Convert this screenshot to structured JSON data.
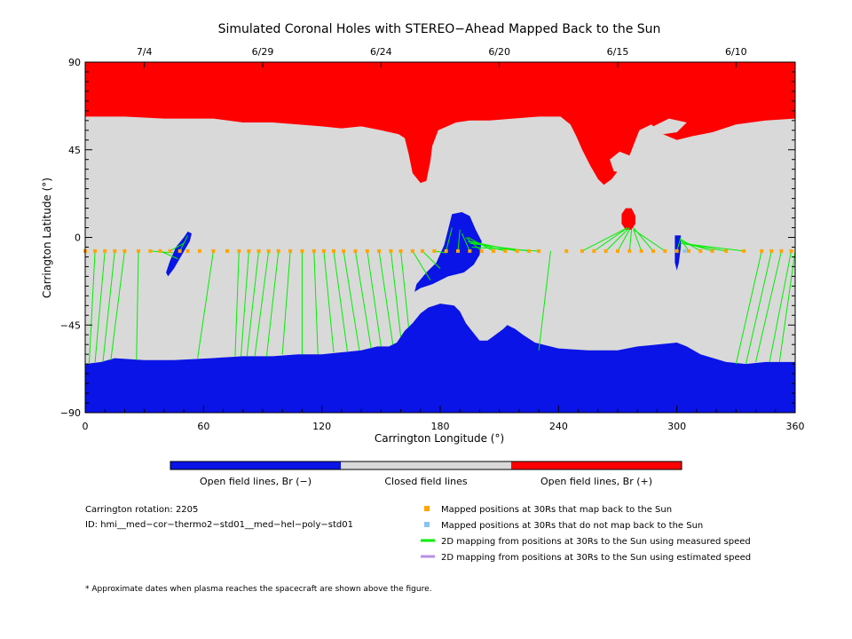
{
  "chart_data": {
    "type": "scatter",
    "title": "Simulated Coronal Holes with STEREO−Ahead Mapped Back to the Sun",
    "xlabel": "Carrington Longitude (°)",
    "ylabel": "Carrington Latitude (°)",
    "xlim": [
      0,
      360
    ],
    "ylim": [
      -90,
      90
    ],
    "x_ticks": [
      0,
      60,
      120,
      180,
      240,
      300,
      360
    ],
    "y_ticks": [
      -90,
      -45,
      0,
      45,
      90
    ],
    "top_axis_dates": [
      {
        "label": "7/4",
        "lon": 30
      },
      {
        "label": "6/29",
        "lon": 90
      },
      {
        "label": "6/24",
        "lon": 150
      },
      {
        "label": "6/20",
        "lon": 210
      },
      {
        "label": "6/15",
        "lon": 270
      },
      {
        "label": "6/10",
        "lon": 330
      }
    ],
    "colors": {
      "open_negative": "#0a14e6",
      "closed": "#d9d9d9",
      "open_positive": "#ff0000",
      "mapped": "#ffa500",
      "unmapped": "#87c5f0",
      "measured": "#00ee00",
      "estimated": "#b98fe8"
    },
    "regions": {
      "positive_polar": [
        [
          0,
          90
        ],
        [
          360,
          90
        ],
        [
          360,
          61
        ],
        [
          345,
          60
        ],
        [
          330,
          58
        ],
        [
          318,
          54
        ],
        [
          308,
          52
        ],
        [
          300,
          50
        ],
        [
          293,
          53
        ],
        [
          287,
          58
        ],
        [
          281,
          55
        ],
        [
          276,
          42
        ],
        [
          272,
          38
        ],
        [
          270,
          34
        ],
        [
          267,
          30
        ],
        [
          263,
          27
        ],
        [
          260,
          30
        ],
        [
          256,
          37
        ],
        [
          252,
          45
        ],
        [
          249,
          52
        ],
        [
          246,
          58
        ],
        [
          241,
          62
        ],
        [
          230,
          62
        ],
        [
          217,
          61
        ],
        [
          205,
          60
        ],
        [
          195,
          60
        ],
        [
          188,
          59
        ],
        [
          179,
          55
        ],
        [
          176,
          47
        ],
        [
          175,
          39
        ],
        [
          173,
          29
        ],
        [
          170,
          28
        ],
        [
          166,
          33
        ],
        [
          164,
          43
        ],
        [
          162,
          51
        ],
        [
          159,
          53
        ],
        [
          150,
          55
        ],
        [
          140,
          57
        ],
        [
          130,
          56
        ],
        [
          120,
          57
        ],
        [
          108,
          58
        ],
        [
          95,
          59
        ],
        [
          80,
          59
        ],
        [
          65,
          61
        ],
        [
          40,
          61
        ],
        [
          20,
          62
        ],
        [
          0,
          62
        ]
      ],
      "positive_spot": [
        [
          277,
          15
        ],
        [
          279,
          11
        ],
        [
          279,
          7
        ],
        [
          277,
          4
        ],
        [
          274,
          4
        ],
        [
          272,
          7
        ],
        [
          272,
          12
        ],
        [
          274,
          15
        ]
      ],
      "closed_islands_in_positive": [
        [
          [
            266,
            40
          ],
          [
            271,
            44
          ],
          [
            276,
            42
          ],
          [
            277,
            37
          ],
          [
            273,
            33
          ],
          [
            268,
            34
          ]
        ],
        [
          [
            288,
            57
          ],
          [
            296,
            61
          ],
          [
            305,
            59
          ],
          [
            300,
            54
          ],
          [
            293,
            53
          ]
        ]
      ],
      "negative_polar": [
        [
          0,
          -90
        ],
        [
          360,
          -90
        ],
        [
          360,
          -64
        ],
        [
          345,
          -64
        ],
        [
          335,
          -65
        ],
        [
          325,
          -64
        ],
        [
          312,
          -60
        ],
        [
          305,
          -56
        ],
        [
          300,
          -54
        ],
        [
          290,
          -55
        ],
        [
          280,
          -56
        ],
        [
          270,
          -58
        ],
        [
          255,
          -58
        ],
        [
          240,
          -57
        ],
        [
          228,
          -54
        ],
        [
          222,
          -50
        ],
        [
          218,
          -47
        ],
        [
          214,
          -45
        ],
        [
          212,
          -47
        ],
        [
          208,
          -50
        ],
        [
          204,
          -53
        ],
        [
          200,
          -53
        ],
        [
          196,
          -48
        ],
        [
          193,
          -44
        ],
        [
          190,
          -38
        ],
        [
          187,
          -35
        ],
        [
          180,
          -34
        ],
        [
          174,
          -36
        ],
        [
          170,
          -39
        ],
        [
          166,
          -44
        ],
        [
          162,
          -48
        ],
        [
          158,
          -54
        ],
        [
          154,
          -56
        ],
        [
          148,
          -56
        ],
        [
          140,
          -58
        ],
        [
          130,
          -59
        ],
        [
          120,
          -60
        ],
        [
          108,
          -60
        ],
        [
          95,
          -61
        ],
        [
          80,
          -61
        ],
        [
          64,
          -62
        ],
        [
          45,
          -63
        ],
        [
          30,
          -63
        ],
        [
          15,
          -62
        ],
        [
          8,
          -64
        ],
        [
          0,
          -65
        ]
      ],
      "negative_patches": [
        [
          [
            186,
            12
          ],
          [
            191,
            13
          ],
          [
            195,
            11
          ],
          [
            198,
            4
          ],
          [
            201,
            -2
          ],
          [
            200,
            -9
          ],
          [
            197,
            -14
          ],
          [
            192,
            -18
          ],
          [
            184,
            -20
          ],
          [
            176,
            -24
          ],
          [
            170,
            -26
          ],
          [
            167,
            -28
          ],
          [
            168,
            -24
          ],
          [
            173,
            -18
          ],
          [
            178,
            -13
          ],
          [
            182,
            -4
          ],
          [
            184,
            4
          ]
        ],
        [
          [
            52,
            3
          ],
          [
            54,
            2
          ],
          [
            53,
            -2
          ],
          [
            49,
            -9
          ],
          [
            45,
            -16
          ],
          [
            42,
            -20
          ],
          [
            41,
            -18
          ],
          [
            43,
            -12
          ],
          [
            46,
            -5
          ],
          [
            50,
            0
          ]
        ],
        [
          [
            299,
            1
          ],
          [
            302,
            1
          ],
          [
            302,
            -5
          ],
          [
            301,
            -13
          ],
          [
            300,
            -17
          ],
          [
            299,
            -13
          ],
          [
            299,
            -6
          ]
        ]
      ]
    },
    "mapped_points": [
      [
        0,
        -7
      ],
      [
        5,
        -7
      ],
      [
        10,
        -7
      ],
      [
        15,
        -7
      ],
      [
        20,
        -7
      ],
      [
        27,
        -7
      ],
      [
        33,
        -7
      ],
      [
        38,
        -7
      ],
      [
        43,
        -7
      ],
      [
        48,
        -7
      ],
      [
        52,
        -7
      ],
      [
        58,
        -7
      ],
      [
        65,
        -7
      ],
      [
        72,
        -7
      ],
      [
        78,
        -7
      ],
      [
        83,
        -7
      ],
      [
        88,
        -7
      ],
      [
        93,
        -7
      ],
      [
        98,
        -7
      ],
      [
        104,
        -7
      ],
      [
        110,
        -7
      ],
      [
        116,
        -7
      ],
      [
        121,
        -7
      ],
      [
        126,
        -7
      ],
      [
        131,
        -7
      ],
      [
        137,
        -7
      ],
      [
        143,
        -7
      ],
      [
        149,
        -7
      ],
      [
        155,
        -7
      ],
      [
        160,
        -7
      ],
      [
        166,
        -7
      ],
      [
        171,
        -7
      ],
      [
        177,
        -7
      ],
      [
        183,
        -7
      ],
      [
        189,
        -7
      ],
      [
        195,
        -7
      ],
      [
        201,
        -7
      ],
      [
        207,
        -7
      ],
      [
        213,
        -7
      ],
      [
        219,
        -7
      ],
      [
        225,
        -7
      ],
      [
        230,
        -7
      ],
      [
        244,
        -7
      ],
      [
        252,
        -7
      ],
      [
        258,
        -7
      ],
      [
        264,
        -7
      ],
      [
        270,
        -7
      ],
      [
        276,
        -7
      ],
      [
        282,
        -7
      ],
      [
        288,
        -7
      ],
      [
        294,
        -7
      ],
      [
        300,
        -7
      ],
      [
        306,
        -7
      ],
      [
        312,
        -7
      ],
      [
        318,
        -7
      ],
      [
        325,
        -7
      ],
      [
        334,
        -7
      ],
      [
        343,
        -7
      ],
      [
        348,
        -7
      ],
      [
        353,
        -7
      ],
      [
        358,
        -7
      ]
    ],
    "unmapped_points": [
      [
        304,
        -7
      ]
    ],
    "measured_lines": [
      [
        [
          0,
          -7
        ],
        [
          0,
          -65
        ]
      ],
      [
        [
          5,
          -7
        ],
        [
          2,
          -65
        ]
      ],
      [
        [
          10,
          -7
        ],
        [
          5,
          -64
        ]
      ],
      [
        [
          15,
          -7
        ],
        [
          9,
          -64
        ]
      ],
      [
        [
          20,
          -7
        ],
        [
          13,
          -63
        ]
      ],
      [
        [
          27,
          -7
        ],
        [
          26,
          -63
        ]
      ],
      [
        [
          33,
          -7
        ],
        [
          45,
          -8
        ]
      ],
      [
        [
          38,
          -7
        ],
        [
          47,
          -11
        ]
      ],
      [
        [
          43,
          -7
        ],
        [
          50,
          -3
        ]
      ],
      [
        [
          48,
          -7
        ],
        [
          52,
          1
        ]
      ],
      [
        [
          65,
          -7
        ],
        [
          57,
          -62
        ]
      ],
      [
        [
          78,
          -7
        ],
        [
          76,
          -61
        ]
      ],
      [
        [
          83,
          -7
        ],
        [
          79,
          -61
        ]
      ],
      [
        [
          88,
          -7
        ],
        [
          82,
          -61
        ]
      ],
      [
        [
          93,
          -7
        ],
        [
          86,
          -61
        ]
      ],
      [
        [
          98,
          -7
        ],
        [
          92,
          -61
        ]
      ],
      [
        [
          104,
          -7
        ],
        [
          100,
          -60
        ]
      ],
      [
        [
          110,
          -7
        ],
        [
          110,
          -60
        ]
      ],
      [
        [
          116,
          -7
        ],
        [
          118,
          -60
        ]
      ],
      [
        [
          121,
          -7
        ],
        [
          126,
          -59
        ]
      ],
      [
        [
          126,
          -7
        ],
        [
          133,
          -59
        ]
      ],
      [
        [
          131,
          -7
        ],
        [
          139,
          -58
        ]
      ],
      [
        [
          137,
          -7
        ],
        [
          145,
          -57
        ]
      ],
      [
        [
          143,
          -7
        ],
        [
          150,
          -56
        ]
      ],
      [
        [
          149,
          -7
        ],
        [
          156,
          -55
        ]
      ],
      [
        [
          155,
          -7
        ],
        [
          160,
          -51
        ]
      ],
      [
        [
          160,
          -7
        ],
        [
          164,
          -46
        ]
      ],
      [
        [
          166,
          -7
        ],
        [
          175,
          -22
        ]
      ],
      [
        [
          171,
          -7
        ],
        [
          180,
          -16
        ]
      ],
      [
        [
          177,
          -7
        ],
        [
          183,
          -8
        ]
      ],
      [
        [
          183,
          -7
        ],
        [
          186,
          5
        ]
      ],
      [
        [
          189,
          -7
        ],
        [
          190,
          4
        ]
      ],
      [
        [
          195,
          -7
        ],
        [
          191,
          2
        ]
      ],
      [
        [
          201,
          -7
        ],
        [
          193,
          0
        ]
      ],
      [
        [
          207,
          -7
        ],
        [
          194,
          0
        ]
      ],
      [
        [
          213,
          -7
        ],
        [
          194,
          -2
        ]
      ],
      [
        [
          219,
          -7
        ],
        [
          195,
          -2
        ]
      ],
      [
        [
          225,
          -7
        ],
        [
          195,
          -3
        ]
      ],
      [
        [
          230,
          -7
        ],
        [
          196,
          -5
        ]
      ],
      [
        [
          236,
          -7
        ],
        [
          230,
          -58
        ]
      ],
      [
        [
          252,
          -7
        ],
        [
          275,
          5
        ]
      ],
      [
        [
          258,
          -7
        ],
        [
          275,
          5
        ]
      ],
      [
        [
          264,
          -7
        ],
        [
          276,
          5
        ]
      ],
      [
        [
          270,
          -7
        ],
        [
          276,
          4
        ]
      ],
      [
        [
          276,
          -7
        ],
        [
          277,
          4
        ]
      ],
      [
        [
          282,
          -7
        ],
        [
          278,
          4
        ]
      ],
      [
        [
          288,
          -7
        ],
        [
          278,
          5
        ]
      ],
      [
        [
          294,
          -7
        ],
        [
          278,
          4
        ]
      ],
      [
        [
          300,
          -7
        ],
        [
          302,
          0
        ]
      ],
      [
        [
          306,
          -7
        ],
        [
          302,
          -1
        ]
      ],
      [
        [
          312,
          -7
        ],
        [
          302,
          -1
        ]
      ],
      [
        [
          318,
          -7
        ],
        [
          302,
          -2
        ]
      ],
      [
        [
          325,
          -7
        ],
        [
          302,
          -3
        ]
      ],
      [
        [
          334,
          -7
        ],
        [
          302,
          -3
        ]
      ],
      [
        [
          343,
          -7
        ],
        [
          330,
          -65
        ]
      ],
      [
        [
          348,
          -7
        ],
        [
          335,
          -65
        ]
      ],
      [
        [
          353,
          -7
        ],
        [
          340,
          -64
        ]
      ],
      [
        [
          358,
          -7
        ],
        [
          347,
          -64
        ]
      ],
      [
        [
          360,
          -7
        ],
        [
          352,
          -64
        ]
      ]
    ],
    "colorbar": [
      {
        "label": "Open field lines, Br (−)",
        "color": "#0a14e6"
      },
      {
        "label": "Closed field lines",
        "color": "#d9d9d9"
      },
      {
        "label": "Open field lines, Br (+)",
        "color": "#ff0000"
      }
    ],
    "info": {
      "rotation": "Carrington rotation: 2205",
      "id": "ID: hmi__med−cor−thermo2−std01__med−hel−poly−std01"
    },
    "legend": [
      {
        "label": "Mapped positions at 30Rs that map back to the Sun",
        "kind": "square",
        "color": "#ffa500"
      },
      {
        "label": "Mapped positions at 30Rs that do not map back to the Sun",
        "kind": "square",
        "color": "#87c5f0"
      },
      {
        "label": "2D mapping from positions at 30Rs to the Sun using measured speed",
        "kind": "line",
        "color": "#00ee00"
      },
      {
        "label": "2D mapping from positions at 30Rs to the Sun using estimated speed",
        "kind": "line",
        "color": "#b98fe8"
      }
    ],
    "footnote": "* Approximate dates when plasma reaches the spacecraft are shown above the figure."
  }
}
